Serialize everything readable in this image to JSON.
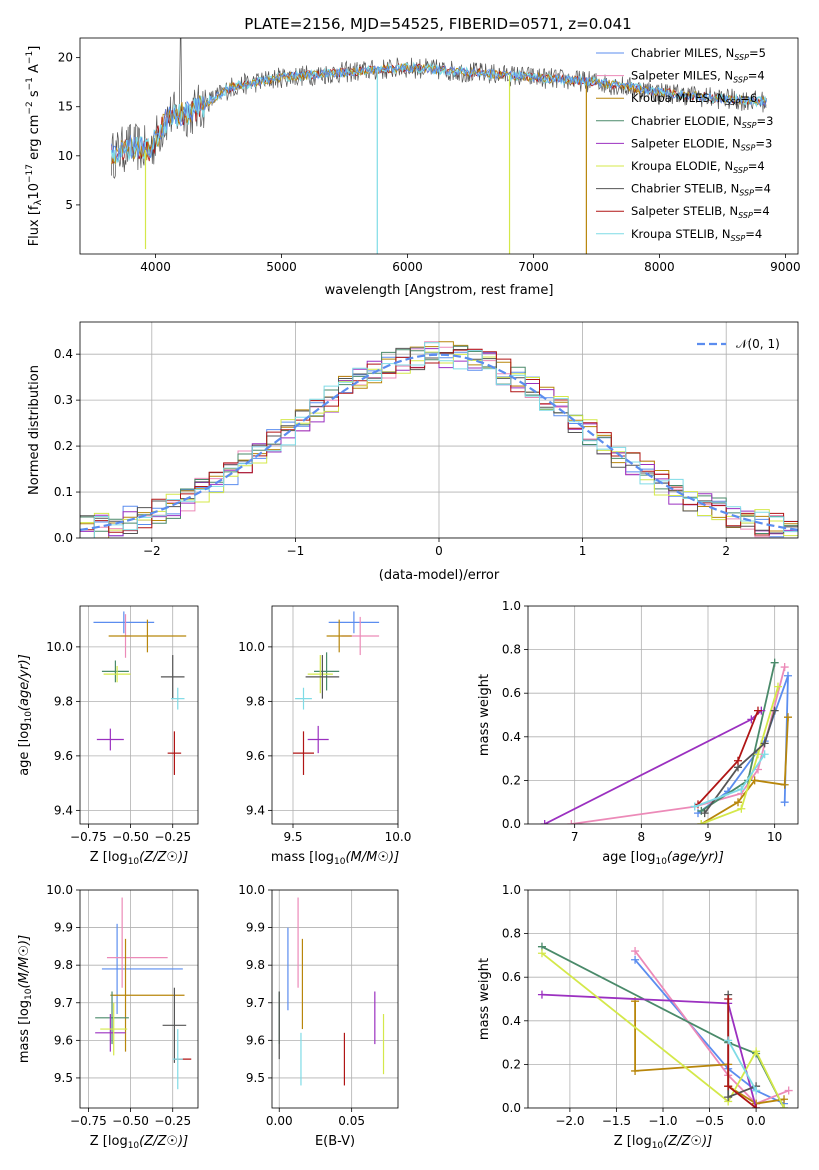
{
  "figure_title": "PLATE=2156, MJD=54525, FIBERID=0571, z=0.041",
  "models": [
    {
      "name": "Chabrier MILES",
      "nssp": 5,
      "color": "#5b8def"
    },
    {
      "name": "Salpeter MILES",
      "nssp": 4,
      "color": "#ec8ab8"
    },
    {
      "name": "Kroupa MILES",
      "nssp": 6,
      "color": "#b8860b"
    },
    {
      "name": "Chabrier ELODIE",
      "nssp": 3,
      "color": "#4a8a6a"
    },
    {
      "name": "Salpeter ELODIE",
      "nssp": 3,
      "color": "#9b30c0"
    },
    {
      "name": "Kroupa ELODIE",
      "nssp": 4,
      "color": "#d4e84a"
    },
    {
      "name": "Chabrier STELIB",
      "nssp": 4,
      "color": "#555555"
    },
    {
      "name": "Salpeter STELIB",
      "nssp": 4,
      "color": "#b01515"
    },
    {
      "name": "Kroupa STELIB",
      "nssp": 4,
      "color": "#7fdbe6"
    }
  ],
  "chart_data": [
    {
      "id": "spectrum",
      "type": "line",
      "title": "PLATE=2156, MJD=54525, FIBERID=0571, z=0.041",
      "xlabel": "wavelength [Angstrom, rest frame]",
      "ylabel_parts": [
        "Flux [f",
        "λ",
        "10",
        "−17",
        " erg cm",
        "−2",
        " s",
        "−1",
        " A",
        "−1",
        "]"
      ],
      "xlim": [
        3400,
        9100
      ],
      "ylim": [
        0,
        22
      ],
      "xticks": [
        4000,
        5000,
        6000,
        7000,
        8000,
        9000
      ],
      "yticks": [
        5,
        10,
        15,
        20
      ],
      "legend_position": "upper-right",
      "legend_label_suffix": "N",
      "legend_sub": "SSP",
      "data_range": [
        3650,
        8850
      ],
      "continuum_anchors": [
        [
          3650,
          10.0
        ],
        [
          3800,
          11.0
        ],
        [
          3950,
          10.5
        ],
        [
          4100,
          14.0
        ],
        [
          4300,
          14.5
        ],
        [
          4600,
          17.0
        ],
        [
          5000,
          18.0
        ],
        [
          5500,
          18.5
        ],
        [
          6000,
          19.0
        ],
        [
          6500,
          18.5
        ],
        [
          7000,
          18.0
        ],
        [
          7500,
          17.5
        ],
        [
          8000,
          16.5
        ],
        [
          8500,
          15.8
        ],
        [
          8850,
          15.5
        ]
      ],
      "spikes": [
        {
          "x": 3920,
          "y": 0.5
        },
        {
          "x": 5760,
          "y": 0
        },
        {
          "x": 6810,
          "y": 0
        },
        {
          "x": 7420,
          "y": 0
        }
      ]
    },
    {
      "id": "residual_histogram",
      "type": "histogram",
      "xlabel": "(data-model)/error",
      "ylabel": "Normed distribution",
      "xlim": [
        -2.5,
        2.5
      ],
      "ylim": [
        0,
        0.47
      ],
      "xticks": [
        -2,
        -1,
        0,
        1,
        2
      ],
      "yticks": [
        0.0,
        0.1,
        0.2,
        0.3,
        0.4
      ],
      "reference_label": "𝒩(0, 1)",
      "reference_color": "#5b8def",
      "bin_width": 0.1,
      "grid": true
    },
    {
      "id": "age_vs_Z",
      "type": "errorbar",
      "xlabel": "Z [log10(Z/Z☉)]",
      "ylabel": "age  [log10(age/yr)]",
      "xlim": [
        -0.8,
        -0.1
      ],
      "ylim": [
        9.35,
        10.15
      ],
      "xticks": [
        -0.75,
        -0.5,
        -0.25
      ],
      "yticks": [
        9.4,
        9.6,
        9.8,
        10.0
      ],
      "points": [
        {
          "m": 0,
          "x": -0.54,
          "xerr": 0.18,
          "y": 10.09,
          "yerr": 0.04
        },
        {
          "m": 1,
          "x": -0.53,
          "xerr": 0.03,
          "y": 10.04,
          "yerr": 0.08
        },
        {
          "m": 2,
          "x": -0.4,
          "xerr": 0.23,
          "y": 10.04,
          "yerr": 0.06
        },
        {
          "m": 3,
          "x": -0.59,
          "xerr": 0.08,
          "y": 9.91,
          "yerr": 0.04
        },
        {
          "m": 4,
          "x": -0.62,
          "xerr": 0.08,
          "y": 9.66,
          "yerr": 0.04
        },
        {
          "m": 5,
          "x": -0.58,
          "xerr": 0.08,
          "y": 9.9,
          "yerr": 0.03
        },
        {
          "m": 6,
          "x": -0.25,
          "xerr": 0.07,
          "y": 9.89,
          "yerr": 0.08
        },
        {
          "m": 7,
          "x": -0.24,
          "xerr": 0.04,
          "y": 9.61,
          "yerr": 0.08
        },
        {
          "m": 8,
          "x": -0.22,
          "xerr": 0.04,
          "y": 9.81,
          "yerr": 0.04
        }
      ]
    },
    {
      "id": "age_vs_mass",
      "type": "errorbar",
      "xlabel": "mass [log10(M/M☉)]",
      "ylabel": "",
      "xlim": [
        9.4,
        10.0
      ],
      "ylim": [
        9.35,
        10.15
      ],
      "xticks": [
        9.5,
        10.0
      ],
      "yticks": [
        9.4,
        9.6,
        9.8,
        10.0
      ],
      "points": [
        {
          "m": 0,
          "x": 9.79,
          "xerr": 0.12,
          "y": 10.09,
          "yerr": 0.04
        },
        {
          "m": 1,
          "x": 9.82,
          "xerr": 0.09,
          "y": 10.04,
          "yerr": 0.07
        },
        {
          "m": 2,
          "x": 9.72,
          "xerr": 0.06,
          "y": 10.04,
          "yerr": 0.06
        },
        {
          "m": 3,
          "x": 9.66,
          "xerr": 0.06,
          "y": 9.91,
          "yerr": 0.07
        },
        {
          "m": 4,
          "x": 9.62,
          "xerr": 0.05,
          "y": 9.66,
          "yerr": 0.05
        },
        {
          "m": 5,
          "x": 9.63,
          "xerr": 0.06,
          "y": 9.9,
          "yerr": 0.07
        },
        {
          "m": 6,
          "x": 9.64,
          "xerr": 0.08,
          "y": 9.89,
          "yerr": 0.08
        },
        {
          "m": 7,
          "x": 9.55,
          "xerr": 0.05,
          "y": 9.61,
          "yerr": 0.08
        },
        {
          "m": 8,
          "x": 9.55,
          "xerr": 0.04,
          "y": 9.81,
          "yerr": 0.04
        }
      ]
    },
    {
      "id": "mass_weight_vs_age",
      "type": "line",
      "xlabel": "age  [log10(age/yr)]",
      "ylabel": "mass weight",
      "xlim": [
        6.3,
        10.35
      ],
      "ylim": [
        0,
        1.0
      ],
      "xticks": [
        7,
        8,
        9,
        10
      ],
      "yticks": [
        0.0,
        0.2,
        0.4,
        0.6,
        0.8,
        1.0
      ],
      "series": [
        {
          "m": 0,
          "x": [
            8.85,
            9.3,
            9.85,
            10.2,
            10.15
          ],
          "y": [
            0.05,
            0.15,
            0.38,
            0.68,
            0.1
          ]
        },
        {
          "m": 1,
          "x": [
            6.95,
            8.8,
            9.5,
            9.75,
            10.15
          ],
          "y": [
            0.0,
            0.08,
            0.14,
            0.25,
            0.72
          ]
        },
        {
          "m": 2,
          "x": [
            8.9,
            9.45,
            9.7,
            10.15,
            10.2
          ],
          "y": [
            0.0,
            0.1,
            0.2,
            0.18,
            0.49
          ]
        },
        {
          "m": 3,
          "x": [
            8.9,
            9.6,
            10.0
          ],
          "y": [
            0.06,
            0.2,
            0.74
          ]
        },
        {
          "m": 4,
          "x": [
            6.55,
            9.65,
            9.8
          ],
          "y": [
            0.0,
            0.48,
            0.52
          ]
        },
        {
          "m": 5,
          "x": [
            8.9,
            9.5,
            9.75,
            10.05
          ],
          "y": [
            0.0,
            0.07,
            0.32,
            0.63
          ]
        },
        {
          "m": 6,
          "x": [
            8.95,
            9.45,
            9.85,
            10.0
          ],
          "y": [
            0.05,
            0.26,
            0.37,
            0.52
          ]
        },
        {
          "m": 7,
          "x": [
            8.85,
            9.45,
            9.75
          ],
          "y": [
            0.09,
            0.29,
            0.52
          ]
        },
        {
          "m": 8,
          "x": [
            8.8,
            9.5,
            9.85
          ],
          "y": [
            0.08,
            0.16,
            0.32
          ]
        }
      ]
    },
    {
      "id": "mass_vs_Z",
      "type": "errorbar",
      "xlabel": "Z [log10(Z/Z☉)]",
      "ylabel": "mass [log10(M/M☉)]",
      "xlim": [
        -0.8,
        -0.1
      ],
      "ylim": [
        9.42,
        10.0
      ],
      "xticks": [
        -0.75,
        -0.5,
        -0.25
      ],
      "yticks": [
        9.5,
        9.6,
        9.7,
        9.8,
        9.9,
        10.0
      ],
      "points": [
        {
          "m": 0,
          "x": -0.58,
          "xerr": 0.0,
          "y": 9.79,
          "yerr": 0.12
        },
        {
          "m": 0,
          "x": -0.43,
          "xerr": 0.24,
          "y": 9.79,
          "yerr": 0.0
        },
        {
          "m": 1,
          "x": -0.55,
          "xerr": 0.0,
          "y": 9.86,
          "yerr": 0.12
        },
        {
          "m": 1,
          "x": -0.46,
          "xerr": 0.18,
          "y": 9.82,
          "yerr": 0.0
        },
        {
          "m": 2,
          "x": -0.53,
          "xerr": 0.0,
          "y": 9.72,
          "yerr": 0.15
        },
        {
          "m": 2,
          "x": -0.4,
          "xerr": 0.22,
          "y": 9.72,
          "yerr": 0.0
        },
        {
          "m": 3,
          "x": -0.61,
          "xerr": 0.1,
          "y": 9.66,
          "yerr": 0.07
        },
        {
          "m": 4,
          "x": -0.62,
          "xerr": 0.09,
          "y": 9.62,
          "yerr": 0.05
        },
        {
          "m": 5,
          "x": -0.6,
          "xerr": 0.08,
          "y": 9.63,
          "yerr": 0.07
        },
        {
          "m": 6,
          "x": -0.24,
          "xerr": 0.07,
          "y": 9.64,
          "yerr": 0.1
        },
        {
          "m": 7,
          "x": -0.19,
          "xerr": 0.05,
          "y": 9.55,
          "yerr": 0.0
        },
        {
          "m": 8,
          "x": -0.22,
          "xerr": 0.03,
          "y": 9.55,
          "yerr": 0.08
        }
      ]
    },
    {
      "id": "mass_vs_EBV",
      "type": "errorbar",
      "xlabel": "E(B-V)",
      "ylabel": "",
      "xlim": [
        -0.005,
        0.082
      ],
      "ylim": [
        9.42,
        10.0
      ],
      "xticks": [
        0.0,
        0.05
      ],
      "yticks": [
        9.5,
        9.6,
        9.7,
        9.8,
        9.9,
        10.0
      ],
      "points": [
        {
          "m": 0,
          "x": 0.006,
          "xerr": 0.0,
          "y": 9.79,
          "yerr": 0.11
        },
        {
          "m": 1,
          "x": 0.013,
          "xerr": 0.0,
          "y": 9.86,
          "yerr": 0.12
        },
        {
          "m": 2,
          "x": 0.016,
          "xerr": 0.0,
          "y": 9.75,
          "yerr": 0.12
        },
        {
          "m": 3,
          "x": 0.0,
          "xerr": 0.0,
          "y": 9.66,
          "yerr": 0.07
        },
        {
          "m": 4,
          "x": 0.066,
          "xerr": 0.0,
          "y": 9.66,
          "yerr": 0.07
        },
        {
          "m": 5,
          "x": 0.072,
          "xerr": 0.0,
          "y": 9.59,
          "yerr": 0.08
        },
        {
          "m": 6,
          "x": 0.0,
          "xerr": 0.0,
          "y": 9.64,
          "yerr": 0.09
        },
        {
          "m": 7,
          "x": 0.045,
          "xerr": 0.0,
          "y": 9.55,
          "yerr": 0.07
        },
        {
          "m": 8,
          "x": 0.015,
          "xerr": 0.0,
          "y": 9.55,
          "yerr": 0.07
        }
      ]
    },
    {
      "id": "mass_weight_vs_Z",
      "type": "line",
      "xlabel": "Z [log10(Z/Z☉)]",
      "ylabel": "mass weight",
      "xlim": [
        -2.45,
        0.45
      ],
      "ylim": [
        0,
        1.0
      ],
      "xticks": [
        -2.0,
        -1.5,
        -1.0,
        -0.5,
        0.0
      ],
      "yticks": [
        0.0,
        0.2,
        0.4,
        0.6,
        0.8,
        1.0
      ],
      "series": [
        {
          "m": 0,
          "x": [
            -1.3,
            -0.3,
            0.0,
            0.3
          ],
          "y": [
            0.68,
            0.18,
            0.08,
            0.02
          ]
        },
        {
          "m": 1,
          "x": [
            -1.3,
            -0.3,
            0.0,
            0.35
          ],
          "y": [
            0.72,
            0.15,
            0.02,
            0.08
          ]
        },
        {
          "m": 2,
          "x": [
            -1.3,
            -1.3,
            -0.3,
            -0.3,
            0.0,
            0.3
          ],
          "y": [
            0.49,
            0.17,
            0.2,
            0.1,
            0.02,
            0.04
          ]
        },
        {
          "m": 3,
          "x": [
            -2.3,
            -0.3,
            0.0,
            0.3
          ],
          "y": [
            0.74,
            0.3,
            0.25,
            0.0
          ]
        },
        {
          "m": 4,
          "x": [
            -2.3,
            -0.3,
            0.0
          ],
          "y": [
            0.52,
            0.48,
            0.0
          ]
        },
        {
          "m": 5,
          "x": [
            -2.3,
            -0.3,
            0.0,
            0.3
          ],
          "y": [
            0.71,
            0.03,
            0.26,
            0.0
          ]
        },
        {
          "m": 6,
          "x": [
            -0.3,
            -0.3,
            0.0
          ],
          "y": [
            0.52,
            0.05,
            0.1
          ]
        },
        {
          "m": 7,
          "x": [
            -0.3,
            -0.3,
            0.0
          ],
          "y": [
            0.5,
            0.1,
            0.0
          ]
        },
        {
          "m": 8,
          "x": [
            -0.3,
            0.0
          ],
          "y": [
            0.31,
            0.08
          ]
        }
      ]
    }
  ]
}
